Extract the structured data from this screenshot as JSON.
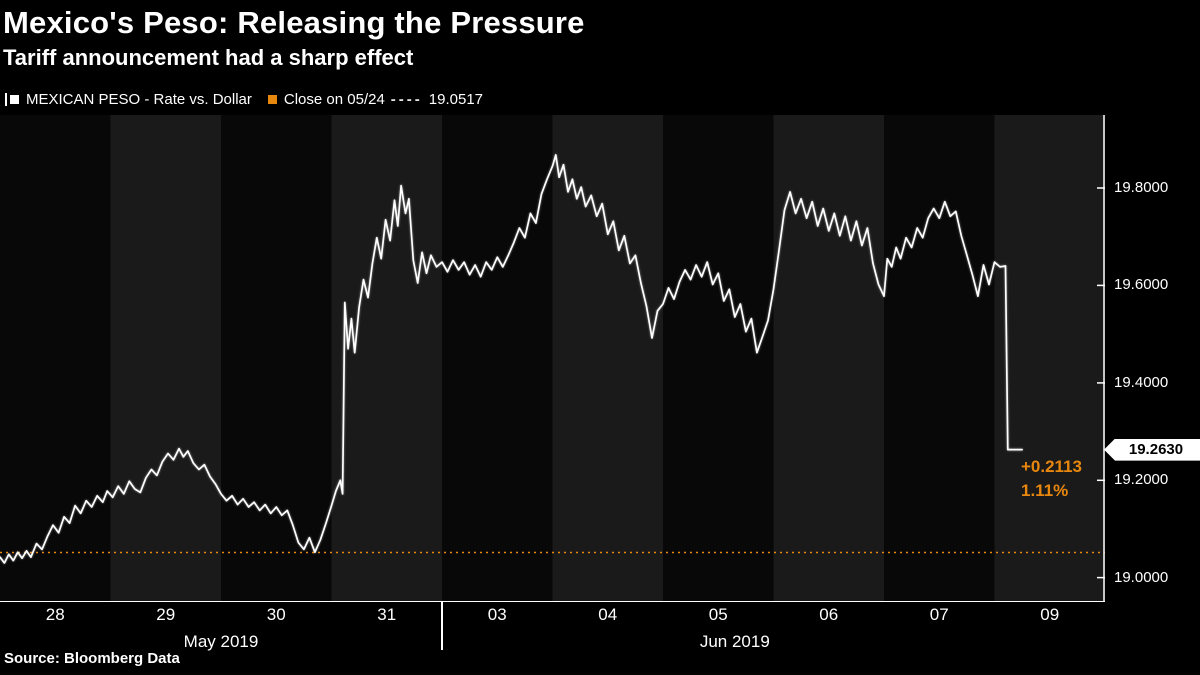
{
  "header": {
    "title": "Mexico's Peso: Releasing the Pressure",
    "subtitle": "Tariff announcement had a sharp effect"
  },
  "legend": {
    "series_label": "MEXICAN PESO - Rate vs. Dollar",
    "close_label": "Close on 05/24",
    "close_dash": "----",
    "close_value": "19.0517"
  },
  "footer": {
    "source": "Source: Bloomberg Data"
  },
  "colors": {
    "background": "#000000",
    "line_white": "#ffffff",
    "accent_orange": "#e8870e",
    "band_dark": "#080808",
    "band_light": "#1a1a1a",
    "axis": "#ffffff"
  },
  "chart_data": {
    "type": "line",
    "title": "Mexico's Peso: Releasing the Pressure",
    "subtitle": "Tariff announcement had a sharp effect",
    "x_categories": [
      "28",
      "29",
      "30",
      "31",
      "03",
      "04",
      "05",
      "06",
      "07",
      "09"
    ],
    "x_groups": [
      {
        "label": "May 2019",
        "center_t": 2.0
      },
      {
        "label": "Jun 2019",
        "center_t": 6.65
      }
    ],
    "x_group_divider_t": 4.0,
    "y_ticks": [
      19.0,
      19.2,
      19.4,
      19.6,
      19.8
    ],
    "y_tick_labels": [
      "19.0000",
      "19.2000",
      "19.4000",
      "19.6000",
      "19.8000"
    ],
    "ylim": [
      18.95,
      19.95
    ],
    "grid": false,
    "legend_position": "top-left",
    "reference_line": {
      "label": "Close on 05/24",
      "value": 19.0517,
      "style": "dotted",
      "color": "#e8870e"
    },
    "last_price": 19.263,
    "last_price_label": "19.2630",
    "net_change": "+0.2113",
    "pct_change": "1.11%",
    "series": [
      {
        "name": "MEXICAN PESO - Rate vs. Dollar",
        "color": "#ffffff",
        "points": [
          [
            0.0,
            19.042
          ],
          [
            0.04,
            19.03
          ],
          [
            0.08,
            19.048
          ],
          [
            0.12,
            19.035
          ],
          [
            0.16,
            19.052
          ],
          [
            0.2,
            19.04
          ],
          [
            0.24,
            19.055
          ],
          [
            0.28,
            19.042
          ],
          [
            0.33,
            19.07
          ],
          [
            0.38,
            19.058
          ],
          [
            0.43,
            19.085
          ],
          [
            0.48,
            19.108
          ],
          [
            0.53,
            19.092
          ],
          [
            0.58,
            19.125
          ],
          [
            0.63,
            19.112
          ],
          [
            0.68,
            19.148
          ],
          [
            0.73,
            19.132
          ],
          [
            0.78,
            19.158
          ],
          [
            0.83,
            19.145
          ],
          [
            0.88,
            19.168
          ],
          [
            0.93,
            19.155
          ],
          [
            0.97,
            19.178
          ],
          [
            1.02,
            19.165
          ],
          [
            1.07,
            19.188
          ],
          [
            1.12,
            19.172
          ],
          [
            1.17,
            19.198
          ],
          [
            1.22,
            19.182
          ],
          [
            1.27,
            19.175
          ],
          [
            1.32,
            19.205
          ],
          [
            1.37,
            19.222
          ],
          [
            1.42,
            19.21
          ],
          [
            1.47,
            19.238
          ],
          [
            1.52,
            19.255
          ],
          [
            1.57,
            19.242
          ],
          [
            1.62,
            19.265
          ],
          [
            1.66,
            19.248
          ],
          [
            1.7,
            19.26
          ],
          [
            1.75,
            19.235
          ],
          [
            1.8,
            19.222
          ],
          [
            1.85,
            19.232
          ],
          [
            1.9,
            19.208
          ],
          [
            1.95,
            19.192
          ],
          [
            2.0,
            19.172
          ],
          [
            2.05,
            19.158
          ],
          [
            2.1,
            19.168
          ],
          [
            2.15,
            19.15
          ],
          [
            2.2,
            19.162
          ],
          [
            2.25,
            19.145
          ],
          [
            2.3,
            19.155
          ],
          [
            2.35,
            19.138
          ],
          [
            2.4,
            19.15
          ],
          [
            2.45,
            19.132
          ],
          [
            2.5,
            19.145
          ],
          [
            2.55,
            19.128
          ],
          [
            2.6,
            19.138
          ],
          [
            2.65,
            19.108
          ],
          [
            2.7,
            19.072
          ],
          [
            2.75,
            19.058
          ],
          [
            2.8,
            19.082
          ],
          [
            2.85,
            19.052
          ],
          [
            2.9,
            19.078
          ],
          [
            2.95,
            19.112
          ],
          [
            3.0,
            19.148
          ],
          [
            3.04,
            19.178
          ],
          [
            3.08,
            19.2
          ],
          [
            3.1,
            19.172
          ],
          [
            3.12,
            19.565
          ],
          [
            3.15,
            19.47
          ],
          [
            3.18,
            19.532
          ],
          [
            3.21,
            19.462
          ],
          [
            3.25,
            19.555
          ],
          [
            3.29,
            19.612
          ],
          [
            3.33,
            19.575
          ],
          [
            3.37,
            19.645
          ],
          [
            3.41,
            19.698
          ],
          [
            3.45,
            19.655
          ],
          [
            3.49,
            19.735
          ],
          [
            3.53,
            19.692
          ],
          [
            3.57,
            19.775
          ],
          [
            3.6,
            19.722
          ],
          [
            3.63,
            19.805
          ],
          [
            3.67,
            19.748
          ],
          [
            3.7,
            19.778
          ],
          [
            3.74,
            19.652
          ],
          [
            3.78,
            19.605
          ],
          [
            3.82,
            19.668
          ],
          [
            3.86,
            19.625
          ],
          [
            3.9,
            19.662
          ],
          [
            3.95,
            19.638
          ],
          [
            4.0,
            19.648
          ],
          [
            4.05,
            19.628
          ],
          [
            4.1,
            19.652
          ],
          [
            4.15,
            19.632
          ],
          [
            4.2,
            19.648
          ],
          [
            4.25,
            19.622
          ],
          [
            4.3,
            19.642
          ],
          [
            4.35,
            19.618
          ],
          [
            4.4,
            19.648
          ],
          [
            4.45,
            19.632
          ],
          [
            4.5,
            19.658
          ],
          [
            4.55,
            19.638
          ],
          [
            4.6,
            19.662
          ],
          [
            4.65,
            19.688
          ],
          [
            4.7,
            19.718
          ],
          [
            4.75,
            19.698
          ],
          [
            4.8,
            19.748
          ],
          [
            4.85,
            19.728
          ],
          [
            4.9,
            19.788
          ],
          [
            4.95,
            19.818
          ],
          [
            5.0,
            19.845
          ],
          [
            5.03,
            19.868
          ],
          [
            5.06,
            19.822
          ],
          [
            5.1,
            19.848
          ],
          [
            5.14,
            19.792
          ],
          [
            5.18,
            19.818
          ],
          [
            5.22,
            19.778
          ],
          [
            5.26,
            19.802
          ],
          [
            5.3,
            19.762
          ],
          [
            5.35,
            19.785
          ],
          [
            5.4,
            19.742
          ],
          [
            5.45,
            19.768
          ],
          [
            5.5,
            19.705
          ],
          [
            5.55,
            19.732
          ],
          [
            5.6,
            19.672
          ],
          [
            5.65,
            19.702
          ],
          [
            5.7,
            19.645
          ],
          [
            5.75,
            19.662
          ],
          [
            5.8,
            19.605
          ],
          [
            5.85,
            19.558
          ],
          [
            5.9,
            19.492
          ],
          [
            5.95,
            19.548
          ],
          [
            6.0,
            19.562
          ],
          [
            6.05,
            19.595
          ],
          [
            6.1,
            19.572
          ],
          [
            6.15,
            19.608
          ],
          [
            6.2,
            19.632
          ],
          [
            6.25,
            19.612
          ],
          [
            6.3,
            19.642
          ],
          [
            6.35,
            19.618
          ],
          [
            6.4,
            19.648
          ],
          [
            6.45,
            19.602
          ],
          [
            6.5,
            19.625
          ],
          [
            6.55,
            19.568
          ],
          [
            6.6,
            19.592
          ],
          [
            6.65,
            19.535
          ],
          [
            6.7,
            19.562
          ],
          [
            6.75,
            19.505
          ],
          [
            6.8,
            19.532
          ],
          [
            6.85,
            19.462
          ],
          [
            6.9,
            19.495
          ],
          [
            6.95,
            19.528
          ],
          [
            7.0,
            19.592
          ],
          [
            7.05,
            19.672
          ],
          [
            7.1,
            19.755
          ],
          [
            7.15,
            19.792
          ],
          [
            7.2,
            19.748
          ],
          [
            7.25,
            19.778
          ],
          [
            7.3,
            19.738
          ],
          [
            7.35,
            19.772
          ],
          [
            7.4,
            19.722
          ],
          [
            7.45,
            19.758
          ],
          [
            7.5,
            19.712
          ],
          [
            7.55,
            19.748
          ],
          [
            7.6,
            19.702
          ],
          [
            7.65,
            19.742
          ],
          [
            7.7,
            19.692
          ],
          [
            7.75,
            19.732
          ],
          [
            7.8,
            19.682
          ],
          [
            7.85,
            19.718
          ],
          [
            7.9,
            19.645
          ],
          [
            7.95,
            19.602
          ],
          [
            8.0,
            19.578
          ],
          [
            8.03,
            19.655
          ],
          [
            8.07,
            19.638
          ],
          [
            8.11,
            19.678
          ],
          [
            8.15,
            19.655
          ],
          [
            8.2,
            19.698
          ],
          [
            8.25,
            19.678
          ],
          [
            8.3,
            19.718
          ],
          [
            8.35,
            19.698
          ],
          [
            8.4,
            19.738
          ],
          [
            8.45,
            19.758
          ],
          [
            8.5,
            19.738
          ],
          [
            8.55,
            19.772
          ],
          [
            8.6,
            19.742
          ],
          [
            8.65,
            19.752
          ],
          [
            8.7,
            19.702
          ],
          [
            8.75,
            19.662
          ],
          [
            8.8,
            19.622
          ],
          [
            8.85,
            19.578
          ],
          [
            8.9,
            19.642
          ],
          [
            8.95,
            19.602
          ],
          [
            9.0,
            19.648
          ],
          [
            9.05,
            19.638
          ],
          [
            9.1,
            19.64
          ],
          [
            9.12,
            19.263
          ],
          [
            9.25,
            19.263
          ]
        ]
      }
    ]
  }
}
